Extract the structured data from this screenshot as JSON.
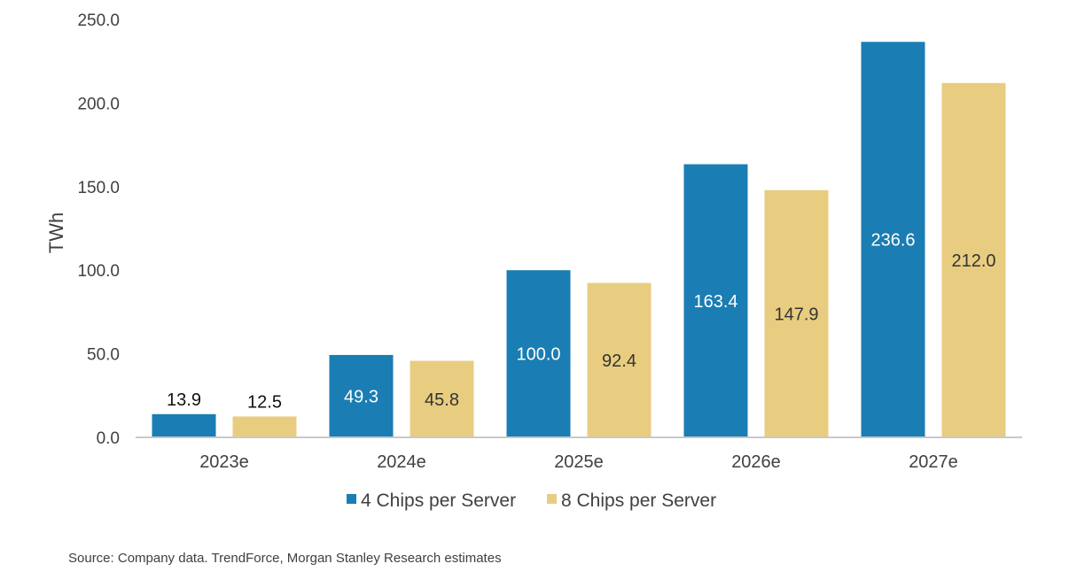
{
  "chart_data": {
    "type": "bar",
    "title": "",
    "xlabel": "",
    "ylabel": "TWh",
    "ylim": [
      0,
      250
    ],
    "y_ticks": [
      0,
      50,
      100,
      150,
      200,
      250
    ],
    "y_tick_labels": [
      "0.0",
      "50.0",
      "100.0",
      "150.0",
      "200.0",
      "250.0"
    ],
    "categories": [
      "2023e",
      "2024e",
      "2025e",
      "2026e",
      "2027e"
    ],
    "series": [
      {
        "name": "4 Chips per Server",
        "color": "#1a7db3",
        "values": [
          13.9,
          49.3,
          100.0,
          163.4,
          236.6
        ],
        "labels": [
          "13.9",
          "49.3",
          "100.0",
          "163.4",
          "236.6"
        ]
      },
      {
        "name": "8 Chips per Server",
        "color": "#e8cd80",
        "values": [
          12.5,
          45.8,
          92.4,
          147.9,
          212.0
        ],
        "labels": [
          "12.5",
          "45.8",
          "92.4",
          "147.9",
          "212.0"
        ]
      }
    ],
    "grid": false,
    "legend_position": "bottom"
  },
  "source_note": "Source: Company data. TrendForce, Morgan Stanley Research estimates"
}
